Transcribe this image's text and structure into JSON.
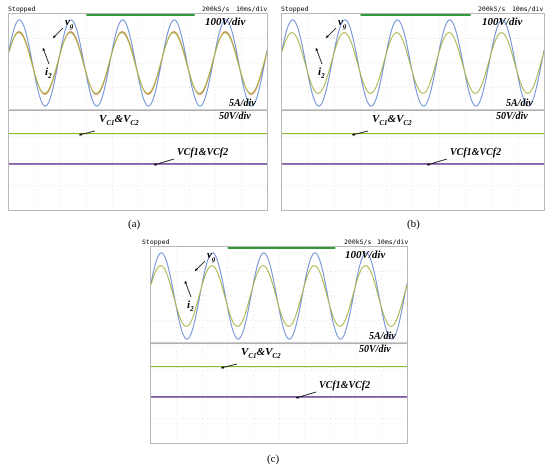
{
  "panels": [
    {
      "caption": "(a)",
      "status": "Stopped",
      "rate": "200kS/s",
      "timebase": "10ms/div",
      "labels": {
        "vg": "v",
        "vg_sub": "g",
        "i2": "i",
        "i2_sub": "2",
        "v_scale": "100V/div",
        "i_scale": "5A/div",
        "dc_scale": "50V/div",
        "vc": "V",
        "vc_sub1": "C1",
        "vc_amp": "&",
        "vc_v2": "V",
        "vc_sub2": "C2",
        "vcf": "VCf1&VCf2"
      }
    },
    {
      "caption": "(b)",
      "status": "Stopped",
      "rate": "200kS/s",
      "timebase": "10ms/div",
      "labels": {
        "vg": "v",
        "vg_sub": "g",
        "i2": "i",
        "i2_sub": "2",
        "v_scale": "100V/div",
        "i_scale": "5A/div",
        "dc_scale": "50V/div",
        "vc": "V",
        "vc_sub1": "C1",
        "vc_amp": "&",
        "vc_v2": "V",
        "vc_sub2": "C2",
        "vcf": "VCf1&VCf2"
      }
    },
    {
      "caption": "(c)",
      "status": "Stopped",
      "rate": "200kS/s",
      "timebase": "10ms/div",
      "labels": {
        "vg": "v",
        "vg_sub": "g",
        "i2": "i",
        "i2_sub": "2",
        "v_scale": "100V/div",
        "i_scale": "5A/div",
        "dc_scale": "50V/div",
        "vc": "V",
        "vc_sub1": "C1",
        "vc_amp": "&",
        "vc_v2": "V",
        "vc_sub2": "C2",
        "vcf": "VCf1&VCf2"
      }
    }
  ],
  "colors": {
    "vg": "#6b8fd6",
    "i2": "#a8b545",
    "i2_alt": "#d07a4a",
    "dc": "#8ab830",
    "vcf": "#5a2a8a",
    "grid": "#cfcfcf"
  }
}
